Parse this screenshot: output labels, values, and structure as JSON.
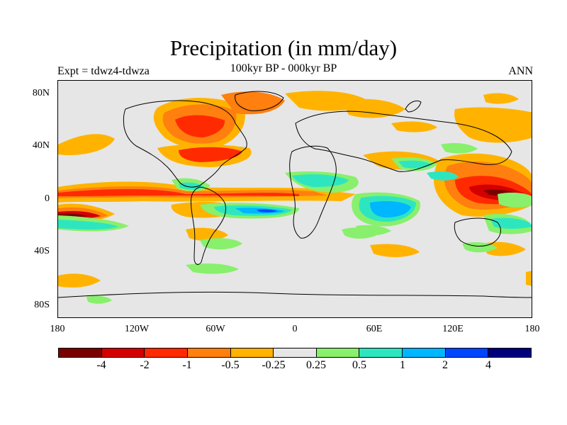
{
  "header": {
    "title": "Precipitation (in mm/day)",
    "subtitle": "100kyr BP - 000kyr BP",
    "left_label": "Expt = tdwz4-tdwza",
    "right_label": "ANN"
  },
  "map": {
    "background_color": "#e6e6e6",
    "coastline_color": "#000000",
    "y_ticks": [
      "80N",
      "40N",
      "0",
      "40S",
      "80S"
    ],
    "x_ticks": [
      "180",
      "120W",
      "60W",
      "0",
      "60E",
      "120E",
      "180"
    ]
  },
  "colorbar": {
    "colors": [
      "#7a0000",
      "#d40000",
      "#ff2a00",
      "#ff7f0f",
      "#ffb300",
      "#e6e6e6",
      "#88f06c",
      "#2de6c0",
      "#00b6ff",
      "#0046ff",
      "#00007f"
    ],
    "labels": [
      "-4",
      "-2",
      "-1",
      "-0.5",
      "-0.25",
      "0.25",
      "0.5",
      "1",
      "2",
      "4"
    ]
  }
}
